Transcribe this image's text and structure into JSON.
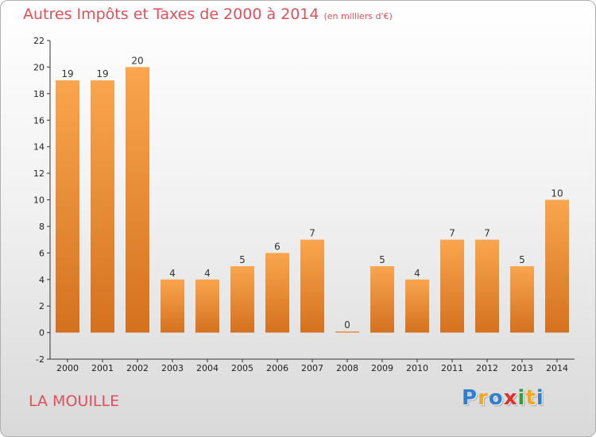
{
  "header": {
    "title": "Autres Impôts et Taxes de 2000 à 2014",
    "subtitle": "(en milliers d'€)"
  },
  "footer": {
    "place": "LA MOUILLE",
    "logo": {
      "letters": [
        "P",
        "r",
        "o",
        "x",
        "i",
        "t",
        "i"
      ],
      "colors": [
        "#2f7fd1",
        "#f5a623",
        "#2f7fd1",
        "#e0302a",
        "#2f9f3f",
        "#f5a623",
        "#2f7fd1"
      ]
    }
  },
  "colors": {
    "accent_text": "#e0505a",
    "bar_light": "#f9a64e",
    "bar_dark": "#d4711f"
  },
  "chart_data": {
    "type": "bar",
    "title": "Autres Impôts et Taxes de 2000 à 2014",
    "subtitle": "(en milliers d'€)",
    "xlabel": "",
    "ylabel": "",
    "categories": [
      "2000",
      "2001",
      "2002",
      "2003",
      "2004",
      "2005",
      "2006",
      "2007",
      "2008",
      "2009",
      "2010",
      "2011",
      "2012",
      "2013",
      "2014"
    ],
    "values": [
      19,
      19,
      20,
      4,
      4,
      5,
      6,
      7,
      0,
      5,
      4,
      7,
      7,
      5,
      10
    ],
    "ylim": [
      -2,
      22
    ],
    "yticks": [
      -2,
      0,
      2,
      4,
      6,
      8,
      10,
      12,
      14,
      16,
      18,
      20,
      22
    ],
    "grid": false,
    "legend": "none"
  }
}
